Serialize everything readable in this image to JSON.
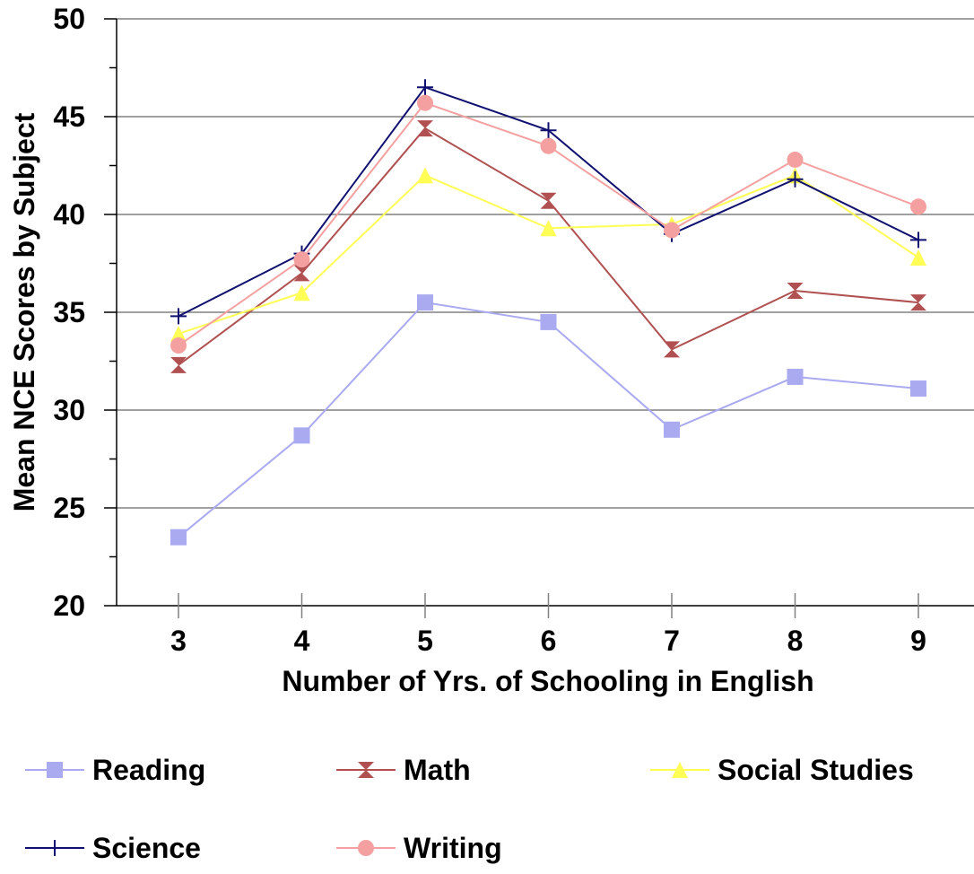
{
  "chart_data": {
    "type": "line",
    "title": "",
    "xlabel": "Number of Yrs. of Schooling in English",
    "ylabel": "Mean NCE Scores by Subject",
    "categories": [
      "3",
      "4",
      "5",
      "6",
      "7",
      "8",
      "9"
    ],
    "ylim": [
      20,
      50
    ],
    "yticks": [
      "20",
      "25",
      "30",
      "35",
      "40",
      "45",
      "50"
    ],
    "grid": true,
    "legend_position": "bottom",
    "series": [
      {
        "name": "Reading",
        "values": [
          23.5,
          28.7,
          35.5,
          34.5,
          29.0,
          31.7,
          31.1
        ],
        "color": "#aaaaf0",
        "marker": "square"
      },
      {
        "name": "Math",
        "values": [
          32.3,
          37.0,
          44.4,
          40.7,
          33.1,
          36.1,
          35.5
        ],
        "color": "#b05050",
        "marker": "hourglass"
      },
      {
        "name": "Social Studies",
        "values": [
          33.9,
          36.0,
          42.0,
          39.3,
          39.5,
          42.0,
          37.8
        ],
        "color": "#ffff55",
        "marker": "triangle"
      },
      {
        "name": "Science",
        "values": [
          34.8,
          38.0,
          46.5,
          44.3,
          39.0,
          41.8,
          38.7
        ],
        "color": "#101070",
        "marker": "plus"
      },
      {
        "name": "Writing",
        "values": [
          33.3,
          37.7,
          45.7,
          43.5,
          39.2,
          42.8,
          40.4
        ],
        "color": "#f4a0a0",
        "marker": "circle"
      }
    ]
  }
}
